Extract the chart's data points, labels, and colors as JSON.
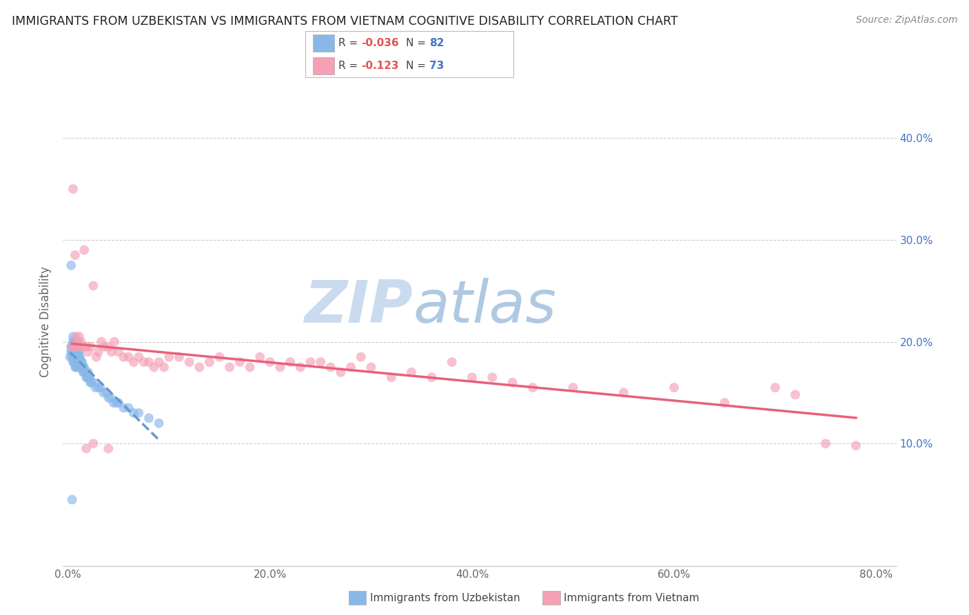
{
  "title": "IMMIGRANTS FROM UZBEKISTAN VS IMMIGRANTS FROM VIETNAM COGNITIVE DISABILITY CORRELATION CHART",
  "source": "Source: ZipAtlas.com",
  "ylabel": "Cognitive Disability",
  "xlabel_ticks": [
    "0.0%",
    "20.0%",
    "40.0%",
    "60.0%",
    "80.0%"
  ],
  "xlabel_tick_vals": [
    0.0,
    0.2,
    0.4,
    0.6,
    0.8
  ],
  "ylabel_ticks": [
    "10.0%",
    "20.0%",
    "30.0%",
    "40.0%"
  ],
  "ylabel_tick_vals": [
    0.1,
    0.2,
    0.3,
    0.4
  ],
  "xlim": [
    -0.005,
    0.82
  ],
  "ylim": [
    -0.02,
    0.46
  ],
  "R_uzbekistan": -0.036,
  "N_uzbekistan": 82,
  "R_vietnam": -0.123,
  "N_vietnam": 73,
  "color_uzbekistan": "#89b8e8",
  "color_vietnam": "#f4a0b5",
  "trendline_uzbekistan_color": "#6699cc",
  "trendline_vietnam_color": "#e8607a",
  "legend_label_uzbekistan": "Immigrants from Uzbekistan",
  "legend_label_vietnam": "Immigrants from Vietnam",
  "watermark_zip": "ZIP",
  "watermark_atlas": "atlas",
  "uzbekistan_x": [
    0.002,
    0.003,
    0.003,
    0.004,
    0.004,
    0.004,
    0.005,
    0.005,
    0.005,
    0.005,
    0.005,
    0.005,
    0.006,
    0.006,
    0.006,
    0.006,
    0.006,
    0.007,
    0.007,
    0.007,
    0.007,
    0.007,
    0.007,
    0.008,
    0.008,
    0.008,
    0.008,
    0.008,
    0.008,
    0.009,
    0.009,
    0.009,
    0.009,
    0.009,
    0.01,
    0.01,
    0.01,
    0.01,
    0.01,
    0.01,
    0.011,
    0.011,
    0.011,
    0.011,
    0.012,
    0.012,
    0.012,
    0.013,
    0.013,
    0.014,
    0.014,
    0.015,
    0.015,
    0.016,
    0.016,
    0.017,
    0.018,
    0.019,
    0.02,
    0.02,
    0.021,
    0.022,
    0.023,
    0.025,
    0.027,
    0.03,
    0.032,
    0.035,
    0.038,
    0.04,
    0.042,
    0.045,
    0.048,
    0.05,
    0.055,
    0.06,
    0.065,
    0.07,
    0.08,
    0.09,
    0.003,
    0.004
  ],
  "uzbekistan_y": [
    0.185,
    0.19,
    0.195,
    0.185,
    0.19,
    0.195,
    0.18,
    0.185,
    0.19,
    0.195,
    0.2,
    0.205,
    0.18,
    0.185,
    0.19,
    0.195,
    0.2,
    0.175,
    0.18,
    0.185,
    0.19,
    0.195,
    0.2,
    0.175,
    0.18,
    0.185,
    0.19,
    0.195,
    0.2,
    0.175,
    0.18,
    0.185,
    0.19,
    0.195,
    0.175,
    0.18,
    0.185,
    0.19,
    0.195,
    0.2,
    0.175,
    0.18,
    0.185,
    0.19,
    0.175,
    0.18,
    0.185,
    0.175,
    0.18,
    0.175,
    0.18,
    0.17,
    0.175,
    0.17,
    0.175,
    0.17,
    0.165,
    0.165,
    0.165,
    0.17,
    0.165,
    0.16,
    0.16,
    0.16,
    0.155,
    0.155,
    0.155,
    0.15,
    0.15,
    0.145,
    0.145,
    0.14,
    0.14,
    0.14,
    0.135,
    0.135,
    0.13,
    0.13,
    0.125,
    0.12,
    0.275,
    0.045
  ],
  "vietnam_x": [
    0.004,
    0.005,
    0.006,
    0.007,
    0.008,
    0.009,
    0.01,
    0.011,
    0.012,
    0.013,
    0.015,
    0.016,
    0.018,
    0.02,
    0.022,
    0.025,
    0.028,
    0.03,
    0.033,
    0.036,
    0.04,
    0.043,
    0.046,
    0.05,
    0.055,
    0.06,
    0.065,
    0.07,
    0.075,
    0.08,
    0.085,
    0.09,
    0.095,
    0.1,
    0.11,
    0.12,
    0.13,
    0.14,
    0.15,
    0.16,
    0.17,
    0.18,
    0.19,
    0.2,
    0.21,
    0.22,
    0.23,
    0.24,
    0.25,
    0.26,
    0.27,
    0.28,
    0.29,
    0.3,
    0.32,
    0.34,
    0.36,
    0.38,
    0.4,
    0.42,
    0.44,
    0.46,
    0.5,
    0.55,
    0.6,
    0.65,
    0.7,
    0.72,
    0.75,
    0.78,
    0.018,
    0.025,
    0.04
  ],
  "vietnam_y": [
    0.195,
    0.35,
    0.195,
    0.285,
    0.205,
    0.195,
    0.2,
    0.205,
    0.195,
    0.2,
    0.195,
    0.29,
    0.195,
    0.19,
    0.195,
    0.255,
    0.185,
    0.19,
    0.2,
    0.195,
    0.195,
    0.19,
    0.2,
    0.19,
    0.185,
    0.185,
    0.18,
    0.185,
    0.18,
    0.18,
    0.175,
    0.18,
    0.175,
    0.185,
    0.185,
    0.18,
    0.175,
    0.18,
    0.185,
    0.175,
    0.18,
    0.175,
    0.185,
    0.18,
    0.175,
    0.18,
    0.175,
    0.18,
    0.18,
    0.175,
    0.17,
    0.175,
    0.185,
    0.175,
    0.165,
    0.17,
    0.165,
    0.18,
    0.165,
    0.165,
    0.16,
    0.155,
    0.155,
    0.15,
    0.155,
    0.14,
    0.155,
    0.148,
    0.1,
    0.098,
    0.095,
    0.1,
    0.095
  ]
}
